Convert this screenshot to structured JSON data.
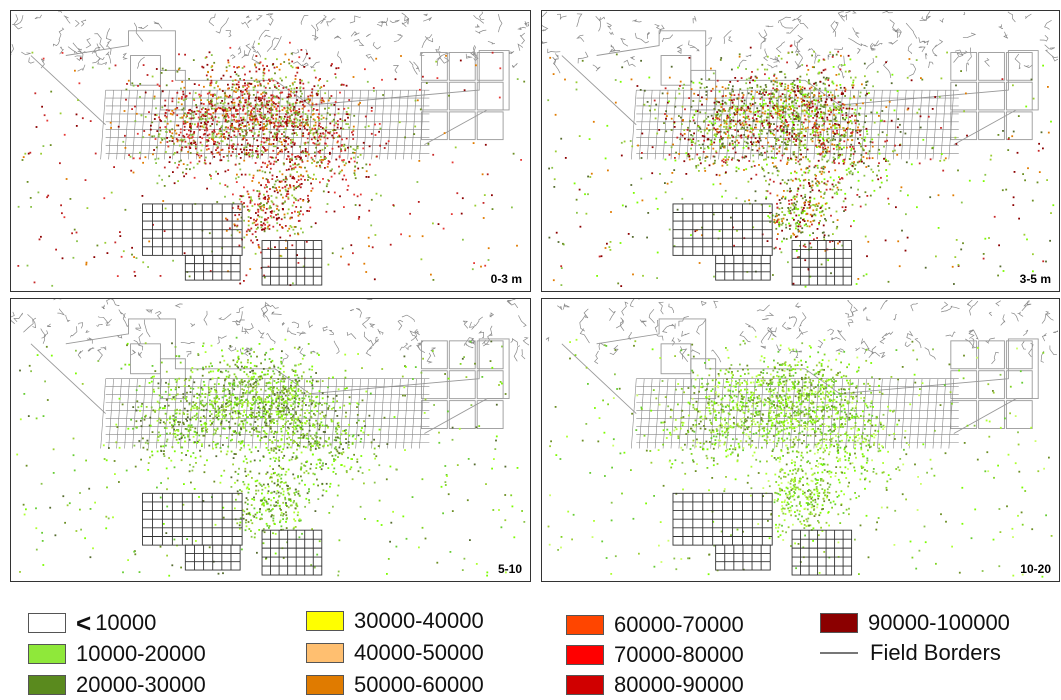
{
  "panels": [
    {
      "label": "0-3 m",
      "palette": [
        "#8B0000",
        "#C62828",
        "#E53935",
        "#8BC34A",
        "#6B8E23",
        "#E07B00",
        "#B71C1C",
        "#9ACD32"
      ]
    },
    {
      "label": "3-5 m",
      "palette": [
        "#6B8E23",
        "#8BC34A",
        "#9ACD32",
        "#8B0000",
        "#C62828",
        "#7CFC00",
        "#556B2F",
        "#E07B00"
      ]
    },
    {
      "label": "5-10",
      "palette": [
        "#7CFC00",
        "#8BC34A",
        "#9ACD32",
        "#6B8E23",
        "#66CC33",
        "#ADFF2F",
        "#556B2F",
        "#7FD320"
      ]
    },
    {
      "label": "10-20",
      "palette": [
        "#7CFC00",
        "#9ACD32",
        "#ADFF2F",
        "#8BC34A",
        "#66CC33",
        "#6B8E23",
        "#CCFF66",
        "#7FD320"
      ]
    }
  ],
  "legend": {
    "less_than_symbol": "<",
    "items": [
      {
        "label": "10000",
        "color": "#FFFFFF"
      },
      {
        "label": "10000-20000",
        "color": "#8FE83A"
      },
      {
        "label": "20000-30000",
        "color": "#5A8A1E"
      },
      {
        "label": "30000-40000",
        "color": "#FFFF00"
      },
      {
        "label": "40000-50000",
        "color": "#FFBF70"
      },
      {
        "label": "50000-60000",
        "color": "#E07B00"
      },
      {
        "label": "60000-70000",
        "color": "#FF4500"
      },
      {
        "label": "70000-80000",
        "color": "#FF0000"
      },
      {
        "label": "80000-90000",
        "color": "#D00000"
      },
      {
        "label": "90000-100000",
        "color": "#8B0000"
      }
    ],
    "field_borders_label": "Field Borders",
    "field_borders_color": "#777777"
  }
}
